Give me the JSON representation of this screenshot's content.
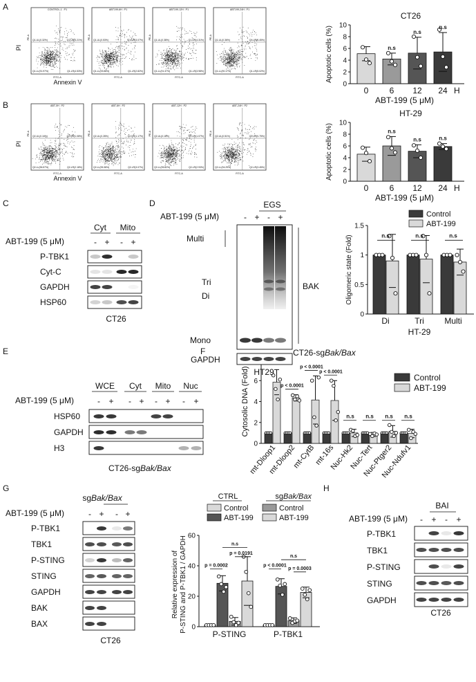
{
  "colors": {
    "light": "#d9d9d9",
    "mid": "#9a9a9a",
    "dark": "#555555",
    "darker": "#3a3a3a",
    "black": "#222222",
    "quadrant_line": "#888888"
  },
  "panel_letters": [
    "A",
    "B",
    "C",
    "D",
    "E",
    "F",
    "G",
    "H"
  ],
  "flow": {
    "rows": [
      {
        "y_label": "PI",
        "x_label": "Annexin V",
        "plots": [
          {
            "header": "CONTROL-1 : P1",
            "ul": "Q1-UL(0.32%)",
            "ur": "Q1-UR(3.21%)",
            "ll": "Q1-LL(91.97%)",
            "lr": "Q1-LR(4.53%)"
          },
          {
            "header": "ABT199-6H : P1",
            "ul": "Q1-UL(0.53%)",
            "ur": "Q1-UR(3.07%)",
            "ll": "Q1-LL(93.58%)",
            "lr": "Q1-LR(2.82%)"
          },
          {
            "header": "ABT199-12H : P1",
            "ul": "Q1-UL(0.38%)",
            "ur": "Q1-UR(4.31%)",
            "ll": "Q1-LL(91.37%)",
            "lr": "Q1-LR(3.98%)"
          },
          {
            "header": "ABT199-24H : P1",
            "ul": "Q1-UL(0.36%)",
            "ur": "Q1-UR(4.45%)",
            "ll": "Q1-LL(90.17%)",
            "lr": "Q1-LR(5.02%)"
          }
        ]
      },
      {
        "y_label": "PI",
        "x_label": "Annexin V",
        "plots": [
          {
            "header": "ABT-0H : P2",
            "ul": "Q2-UL(0.16%)",
            "ur": "Q2-UR(1.08%)",
            "ll": "Q2-LL(96.57%)",
            "lr": "Q2-LR(2.18%)"
          },
          {
            "header": "ABT-6H : P2",
            "ul": "Q2-UL(0.28%)",
            "ur": "Q2-UR(1.17%)",
            "ll": "Q2-LL(95.38%)",
            "lr": "Q2-LR(3.07%)"
          },
          {
            "header": "ABT-12H : P2",
            "ul": "Q2-UL(0.18%)",
            "ur": "Q2-UR(1.07%)",
            "ll": "Q2-LL(95.82%)",
            "lr": "Q2-LR(2.93%)"
          },
          {
            "header": "ABT-24H : P2",
            "ul": "Q2-UL(0.51%)",
            "ur": "Q2-UR(1.75%)",
            "ll": "Q2-LL(94.29%)",
            "lr": "Q2-LR(3.45%)"
          }
        ]
      }
    ],
    "axis_fitc": "FITC-A",
    "axis_pe": "PE-A"
  },
  "chart_data": [
    {
      "id": "A-bar",
      "type": "bar",
      "title": "CT26",
      "ylabel": "Apoptotic cells (%)",
      "xlabel": "ABT-199 (5 μM)",
      "x_unit": "H",
      "categories": [
        "0",
        "6",
        "12",
        "24"
      ],
      "values": [
        5.1,
        4.2,
        5.2,
        5.4
      ],
      "errors": [
        1.2,
        1.0,
        2.7,
        3.3
      ],
      "points": [
        [
          6.2,
          4.1,
          3.5
        ],
        [
          5.2,
          3.8,
          3.2
        ],
        [
          8.0,
          4.5,
          3.0
        ],
        [
          9.2,
          4.6,
          2.8
        ]
      ],
      "sig": [
        "",
        "n.s",
        "n.s",
        "n.s"
      ],
      "ylim": [
        0,
        10
      ],
      "yticks": [
        0,
        2,
        4,
        6,
        8,
        10
      ]
    },
    {
      "id": "B-bar",
      "type": "bar",
      "title": "HT-29",
      "ylabel": "Apoptotic cells (%)",
      "xlabel": "ABT-199 (5 μM)",
      "x_unit": "H",
      "categories": [
        "0",
        "6",
        "12",
        "24"
      ],
      "values": [
        4.6,
        6.0,
        5.1,
        5.9
      ],
      "errors": [
        1.2,
        1.6,
        1.1,
        0.5
      ],
      "points": [
        [
          5.7,
          4.8,
          3.4
        ],
        [
          7.5,
          5.6,
          4.9
        ],
        [
          6.1,
          5.2,
          4.0
        ],
        [
          6.4,
          5.9,
          5.5
        ]
      ],
      "sig": [
        "",
        "n.s",
        "n.s",
        "n.s"
      ],
      "ylim": [
        0,
        10
      ],
      "yticks": [
        0,
        2,
        4,
        6,
        8,
        10
      ]
    },
    {
      "id": "D-bar",
      "type": "bar",
      "ylabel": "Oligomeric state (Fold)",
      "xlabel": "HT-29",
      "categories": [
        "Di",
        "Tri",
        "Multi"
      ],
      "series": [
        {
          "name": "Control",
          "values": [
            1.0,
            1.0,
            1.0
          ],
          "errors": [
            0,
            0,
            0
          ],
          "points": [
            [
              1,
              1,
              1
            ],
            [
              1,
              1,
              1
            ],
            [
              1,
              1,
              1
            ]
          ]
        },
        {
          "name": "ABT-199",
          "values": [
            0.9,
            0.93,
            0.88
          ],
          "errors": [
            0.45,
            0.4,
            0.22
          ],
          "points": [
            [
              1.32,
              0.95,
              0.35
            ],
            [
              1.32,
              1.0,
              0.35
            ],
            [
              1.0,
              0.88,
              0.72
            ]
          ]
        }
      ],
      "sig": [
        "n.s",
        "n.s",
        "n.s"
      ],
      "ylim": [
        0,
        1.5
      ],
      "yticks": [
        0,
        0.5,
        1,
        1.5
      ],
      "ytick_labels": [
        "0",
        "0.5",
        "1",
        "1.5"
      ]
    },
    {
      "id": "F-bar",
      "type": "bar",
      "title": "CT26-sgBak/Bax",
      "ylabel": "Cytosolic DNA (Fold)",
      "categories": [
        "mt-Dloop1",
        "mt-Dloop2",
        "mt-CytB",
        "mt-16s",
        "Nuc-Hk2",
        "Nuc-Tert",
        "Nuc-Ptger2",
        "Nuc-Ndufv1"
      ],
      "series": [
        {
          "name": "Control",
          "values": [
            1,
            1,
            1,
            1,
            1,
            1,
            1,
            1
          ],
          "errors": [
            0,
            0,
            0,
            0,
            0,
            0,
            0,
            0
          ]
        },
        {
          "name": "ABT-199",
          "values": [
            5.85,
            4.35,
            4.15,
            4.1,
            1.0,
            0.85,
            1.15,
            0.95
          ],
          "errors": [
            1.2,
            0.3,
            2.3,
            1.9,
            0.35,
            0.2,
            0.55,
            0.4
          ],
          "points": [
            [
              6.5,
              5.2,
              4.2,
              6.1
            ],
            [
              4.6,
              4.2,
              4.5,
              4.1
            ],
            [
              6.0,
              2.5,
              1.7,
              6.3
            ],
            [
              6.0,
              5.5,
              2.2,
              3.0
            ],
            [
              1.3,
              1.2,
              0.7,
              0.8
            ],
            [
              0.9,
              0.7,
              0.95,
              0.85
            ],
            [
              1.75,
              1.1,
              0.7,
              1.0
            ],
            [
              1.3,
              0.5,
              1.1,
              0.9
            ]
          ]
        }
      ],
      "sig": [
        "p < 0.0001",
        "p < 0.0001",
        "p < 0.0001",
        "p < 0.0001",
        "n.s",
        "n.s",
        "n.s",
        "n.s"
      ],
      "ylim": [
        0,
        8
      ],
      "yticks": [
        0,
        2,
        4,
        6,
        8
      ]
    },
    {
      "id": "G-bar",
      "type": "bar",
      "ylabel": "Relative expression of P-STING and P-TBK1 / GAPDH",
      "categories": [
        "P-STING",
        "P-TBK1"
      ],
      "legend_groups": [
        "CTRL",
        "sgBak/Bax"
      ],
      "series": [
        {
          "name": "Control",
          "group": "CTRL",
          "values": [
            1.0,
            1.0
          ],
          "errors": [
            0,
            0
          ],
          "points": [
            [
              1,
              1,
              1,
              1
            ],
            [
              1,
              1,
              1,
              1
            ]
          ]
        },
        {
          "name": "ABT-199",
          "group": "CTRL",
          "values": [
            28.5,
            26.5
          ],
          "errors": [
            5,
            5
          ],
          "points": [
            [
              33,
              28,
              23,
              26
            ],
            [
              31,
              27,
              21,
              28
            ]
          ]
        },
        {
          "name": "Control",
          "group": "sgBak/Bax",
          "values": [
            3.5,
            4.0
          ],
          "errors": [
            2.5,
            1.8
          ],
          "points": [
            [
              6.5,
              3,
              1,
              2.5
            ],
            [
              5.5,
              2.5,
              3.5,
              4
            ]
          ]
        },
        {
          "name": "ABT-199",
          "group": "sgBak/Bax",
          "values": [
            30,
            22.5
          ],
          "errors": [
            16,
            3.5
          ],
          "points": [
            [
              46,
              36,
              22,
              13
            ],
            [
              25,
              21,
              18,
              24
            ]
          ]
        }
      ],
      "sig": [
        "p = 0.0002",
        "n.s",
        "p = 0.0191",
        "p < 0.0001",
        "n.s",
        "p = 0.0003"
      ],
      "ylim": [
        0,
        60
      ],
      "yticks": [
        0,
        20,
        40,
        60
      ]
    }
  ],
  "blots": {
    "C": {
      "headers": [
        "Cyt",
        "Mito"
      ],
      "treatment": "ABT-199 (5 μM)",
      "signs": [
        "-",
        "+",
        "-",
        "+"
      ],
      "rows": [
        "P-TBK1",
        "Cyt-C",
        "GAPDH",
        "HSP60"
      ],
      "footer": "CT26"
    },
    "D": {
      "group": "EGS",
      "treatment": "ABT-199 (5 μM)",
      "signs": [
        "-",
        "+",
        "-",
        "+"
      ],
      "labels": [
        "Multi",
        "Tri",
        "Di",
        "Mono"
      ],
      "side": "BAK",
      "gapdh": "GAPDH",
      "footer": "HT29"
    },
    "E": {
      "headers": [
        "WCE",
        "Cyt",
        "Mito",
        "Nuc"
      ],
      "treatment": "ABT-199 (5 μM)",
      "signs": [
        "-",
        "+",
        "-",
        "+",
        "-",
        "+",
        "-",
        "+"
      ],
      "rows": [
        "HSP60",
        "GAPDH",
        "H3"
      ],
      "footer_plain": "CT26-sg",
      "footer_italic": "Bak/Bax"
    },
    "G": {
      "group_plain": "sg",
      "group_italic": "Bak/Bax",
      "treatment": "ABT-199 (5 μM)",
      "signs": [
        "-",
        "+",
        "-",
        "+"
      ],
      "rows": [
        "P-TBK1",
        "TBK1",
        "P-STING",
        "STING",
        "GAPDH",
        "BAK",
        "BAX"
      ],
      "footer": "CT26"
    },
    "H": {
      "group": "BAI",
      "treatment": "ABT-199 (5 μM)",
      "signs": [
        "-",
        "+",
        "-",
        "+"
      ],
      "rows": [
        "P-TBK1",
        "TBK1",
        "P-STING",
        "STING",
        "GAPDH"
      ],
      "footer": "CT26"
    }
  }
}
